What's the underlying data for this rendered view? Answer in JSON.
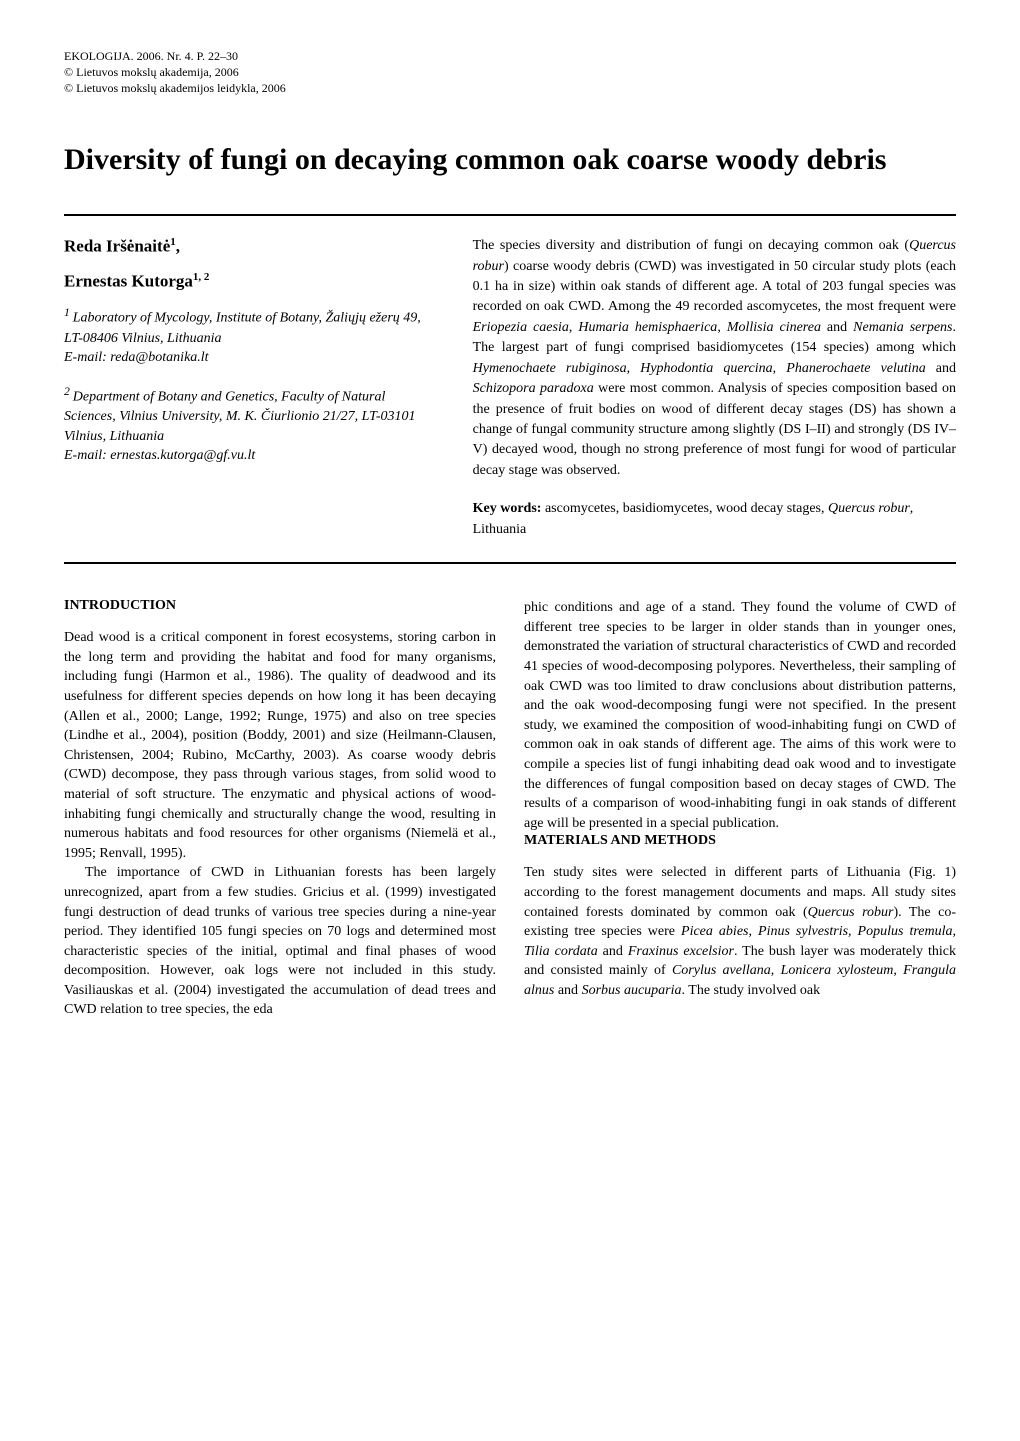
{
  "header": {
    "line1": "EKOLOGIJA. 2006. Nr. 4. P. 22–30",
    "line2": "© Lietuvos mokslų akademija, 2006",
    "line3": "© Lietuvos mokslų akademijos leidykla, 2006"
  },
  "title": "Diversity of fungi on decaying common oak coarse woody debris",
  "authors": {
    "author1_name": "Reda Iršėnaitė",
    "author1_sup": "1",
    "author1_comma": ",",
    "author2_name": "Ernestas Kutorga",
    "author2_sup": "1, 2"
  },
  "affiliations": {
    "aff1_sup": "1 ",
    "aff1_text": "Laboratory of Mycology, Institute of Botany, Žaliųjų ežerų 49, LT-08406 Vilnius, Lithuania",
    "aff1_email": "E-mail: reda@botanika.lt",
    "aff2_sup": "2 ",
    "aff2_text": "Department of Botany and Genetics, Faculty of Natural Sciences, Vilnius University, M. K. Čiurlionio 21/27, LT-03101 Vilnius, Lithuania",
    "aff2_email": "E-mail: ernestas.kutorga@gf.vu.lt"
  },
  "abstract": {
    "p1a": "The species diversity and distribution of fungi on decaying common oak (",
    "p1_i1": "Quercus robur",
    "p1b": ") coarse woody debris (CWD) was investigated in 50 circular study plots (each 0.1 ha in size) within oak stands of different age. A total of 203 fungal species was recorded on oak CWD. Among the 49 recorded ascomycetes, the most frequent were ",
    "p1_i2": "Eriopezia caesia",
    "p1c": ", ",
    "p1_i3": "Humaria hemisphaerica",
    "p1d": ", ",
    "p1_i4": "Mollisia cinerea",
    "p1e": " and ",
    "p1_i5": "Nemania serpens",
    "p1f": ". The largest part of fungi comprised basidiomycetes (154 species) among which ",
    "p1_i6": "Hymenochaete rubiginosa",
    "p1g": ", ",
    "p1_i7": "Hyphodontia quercina",
    "p1h": ", ",
    "p1_i8": "Phanerochaete velutina",
    "p1i": " and ",
    "p1_i9": "Schizopora paradoxa",
    "p1j": " were most common. Analysis of species composition based on the presence of fruit bodies on wood of different decay stages (DS) has shown a change of fungal community structure among slightly (DS I–II) and strongly (DS IV–V) decayed wood, though no strong preference of most fungi for wood of particular decay stage was observed."
  },
  "keywords": {
    "label": "Key words:",
    "text_a": " ascomycetes, basidiomycetes, wood decay stages, ",
    "text_i": "Quercus robur",
    "text_b": ", Lithuania"
  },
  "sections": {
    "intro_heading": "INTRODUCTION",
    "mm_heading": "MATERIALS AND METHODS"
  },
  "body": {
    "intro_p1": "Dead wood is a critical component in forest ecosystems, storing carbon in the long term and providing the habitat and food for many organisms, including fungi (Harmon et al., 1986). The quality of deadwood and its usefulness for different species depends on how long it has been decaying (Allen et al., 2000; Lange, 1992; Runge, 1975) and also on tree species (Lindhe et al., 2004), position (Boddy, 2001) and size (Heilmann-Clausen, Christensen, 2004; Rubino, McCarthy, 2003). As coarse woody debris (CWD) decompose, they pass through various stages, from solid wood to material of soft structure. The enzymatic and physical actions of wood-inhabiting fungi chemically and structurally change the wood, resulting in numerous habitats and food resources for other organisms (Niemelä et al., 1995; Renvall, 1995).",
    "intro_p2": "The importance of CWD in Lithuanian forests has been largely unrecognized, apart from a few studies. Gricius et al. (1999) investigated fungi destruction of dead trunks of various tree species during a nine-year period. They identified 105 fungi species on 70 logs and determined most characteristic species of the initial, optimal and final phases of wood decomposition. However, oak logs were not included in this study. Vasiliauskas et al. (2004) investigated the accumulation of dead trees and CWD relation to tree species, the eda",
    "intro_p2_cont": "phic conditions and age of a stand. They found the volume of CWD of different tree species to be larger in older stands than in younger ones, demonstrated the variation of structural characteristics of CWD and recorded 41 species of wood-decomposing polypores. Nevertheless, their sampling of oak CWD was too limited to draw conclusions about distribution patterns, and the oak wood-decomposing fungi were not specified. In the present study, we examined the composition of wood-inhabiting fungi on CWD of common oak in oak stands of different age. The aims of this work were to compile a species list of fungi inhabiting dead oak wood and to investigate the differences of fungal composition based on decay stages of CWD. The results of a comparison of wood-inhabiting fungi in oak stands of different age will be presented in a special publication.",
    "mm_p1a": "Ten study sites were selected in different parts of Lithuania (Fig. 1) according to the forest management documents and maps. All study sites contained forests dominated by common oak (",
    "mm_i1": "Quercus robur",
    "mm_p1b": "). The co-existing tree species were ",
    "mm_i2": "Picea abies",
    "mm_p1c": ", ",
    "mm_i3": "Pinus sylvestris, Populus tremula",
    "mm_p1d": ", ",
    "mm_i4": "Tilia cordata",
    "mm_p1e": " and ",
    "mm_i5": "Fraxinus excelsior",
    "mm_p1f": ". The bush layer was moderately thick and consisted mainly of ",
    "mm_i6": "Corylus avellana",
    "mm_p1g": ", ",
    "mm_i7": "Lonicera xylosteum",
    "mm_p1h": ", ",
    "mm_i8": "Frangula alnus",
    "mm_p1i": " and ",
    "mm_i9": "Sorbus aucuparia",
    "mm_p1j": ". The study involved oak"
  }
}
